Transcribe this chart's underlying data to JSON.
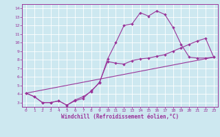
{
  "xlabel": "Windchill (Refroidissement éolien,°C)",
  "bg_color": "#cde8f0",
  "line_color": "#993399",
  "xlim": [
    -0.5,
    23.5
  ],
  "ylim": [
    2.5,
    14.5
  ],
  "xticks": [
    0,
    1,
    2,
    3,
    4,
    5,
    6,
    7,
    8,
    9,
    10,
    11,
    12,
    13,
    14,
    15,
    16,
    17,
    18,
    19,
    20,
    21,
    22,
    23
  ],
  "yticks": [
    3,
    4,
    5,
    6,
    7,
    8,
    9,
    10,
    11,
    12,
    13,
    14
  ],
  "line1_x": [
    0,
    1,
    2,
    3,
    4,
    5,
    6,
    7,
    8,
    9,
    10,
    11,
    12,
    13,
    14,
    15,
    16,
    17,
    18,
    19,
    20,
    21,
    22,
    23
  ],
  "line1_y": [
    4.1,
    3.7,
    3.0,
    3.0,
    3.2,
    2.7,
    3.2,
    3.5,
    4.4,
    5.3,
    8.1,
    10.0,
    12.0,
    12.2,
    13.5,
    13.1,
    13.7,
    13.3,
    11.8,
    9.8,
    8.3,
    8.2,
    8.2,
    8.3
  ],
  "line2_x": [
    0,
    1,
    2,
    3,
    4,
    5,
    6,
    7,
    8,
    9,
    10,
    11,
    12,
    13,
    14,
    15,
    16,
    17,
    18,
    19,
    20,
    21,
    22,
    23
  ],
  "line2_y": [
    4.1,
    3.7,
    3.0,
    3.0,
    3.2,
    2.7,
    3.3,
    3.7,
    4.3,
    5.4,
    7.8,
    7.6,
    7.5,
    7.9,
    8.1,
    8.2,
    8.4,
    8.6,
    9.0,
    9.4,
    9.8,
    10.2,
    10.5,
    8.3
  ],
  "line3_x": [
    0,
    23
  ],
  "line3_y": [
    4.1,
    8.3
  ],
  "tick_fontsize": 4.5,
  "xlabel_fontsize": 5.5
}
